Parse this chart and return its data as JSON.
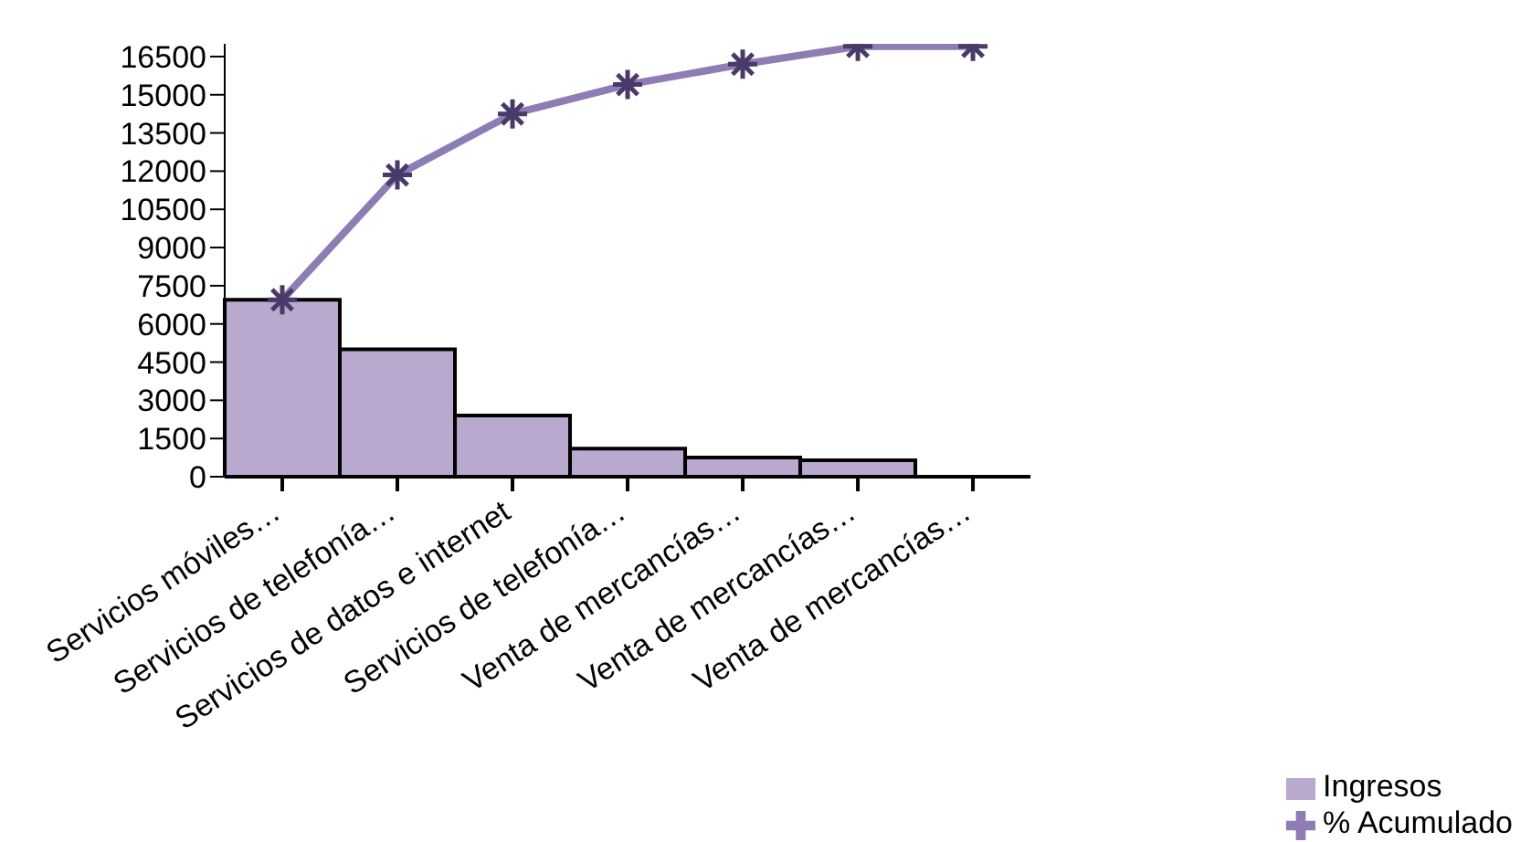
{
  "chart_data": {
    "type": "bar",
    "categories": [
      "Servicios móviles…",
      "Servicios de telefonía…",
      "Servicios de datos e internet",
      "Servicios de telefonía…",
      "Venta de mercancías…",
      "Venta de mercancías…",
      "Venta de mercancías…"
    ],
    "series": [
      {
        "name": "Ingresos",
        "color": "#b9a9cf",
        "values": [
          6950,
          5000,
          2400,
          1100,
          750,
          650,
          0
        ]
      },
      {
        "name": "% Acumulado",
        "type": "line",
        "color": "#8e7cb4",
        "values": [
          6950,
          11850,
          14250,
          15400,
          16200,
          16900,
          16900
        ]
      }
    ],
    "ylim": [
      0,
      17000
    ],
    "yticks": [
      0,
      1500,
      3000,
      4500,
      6000,
      7500,
      9000,
      10500,
      12000,
      13500,
      15000,
      16500
    ],
    "grid": false,
    "legend": "bottom right",
    "marker": "cross",
    "line_style": "solid"
  }
}
